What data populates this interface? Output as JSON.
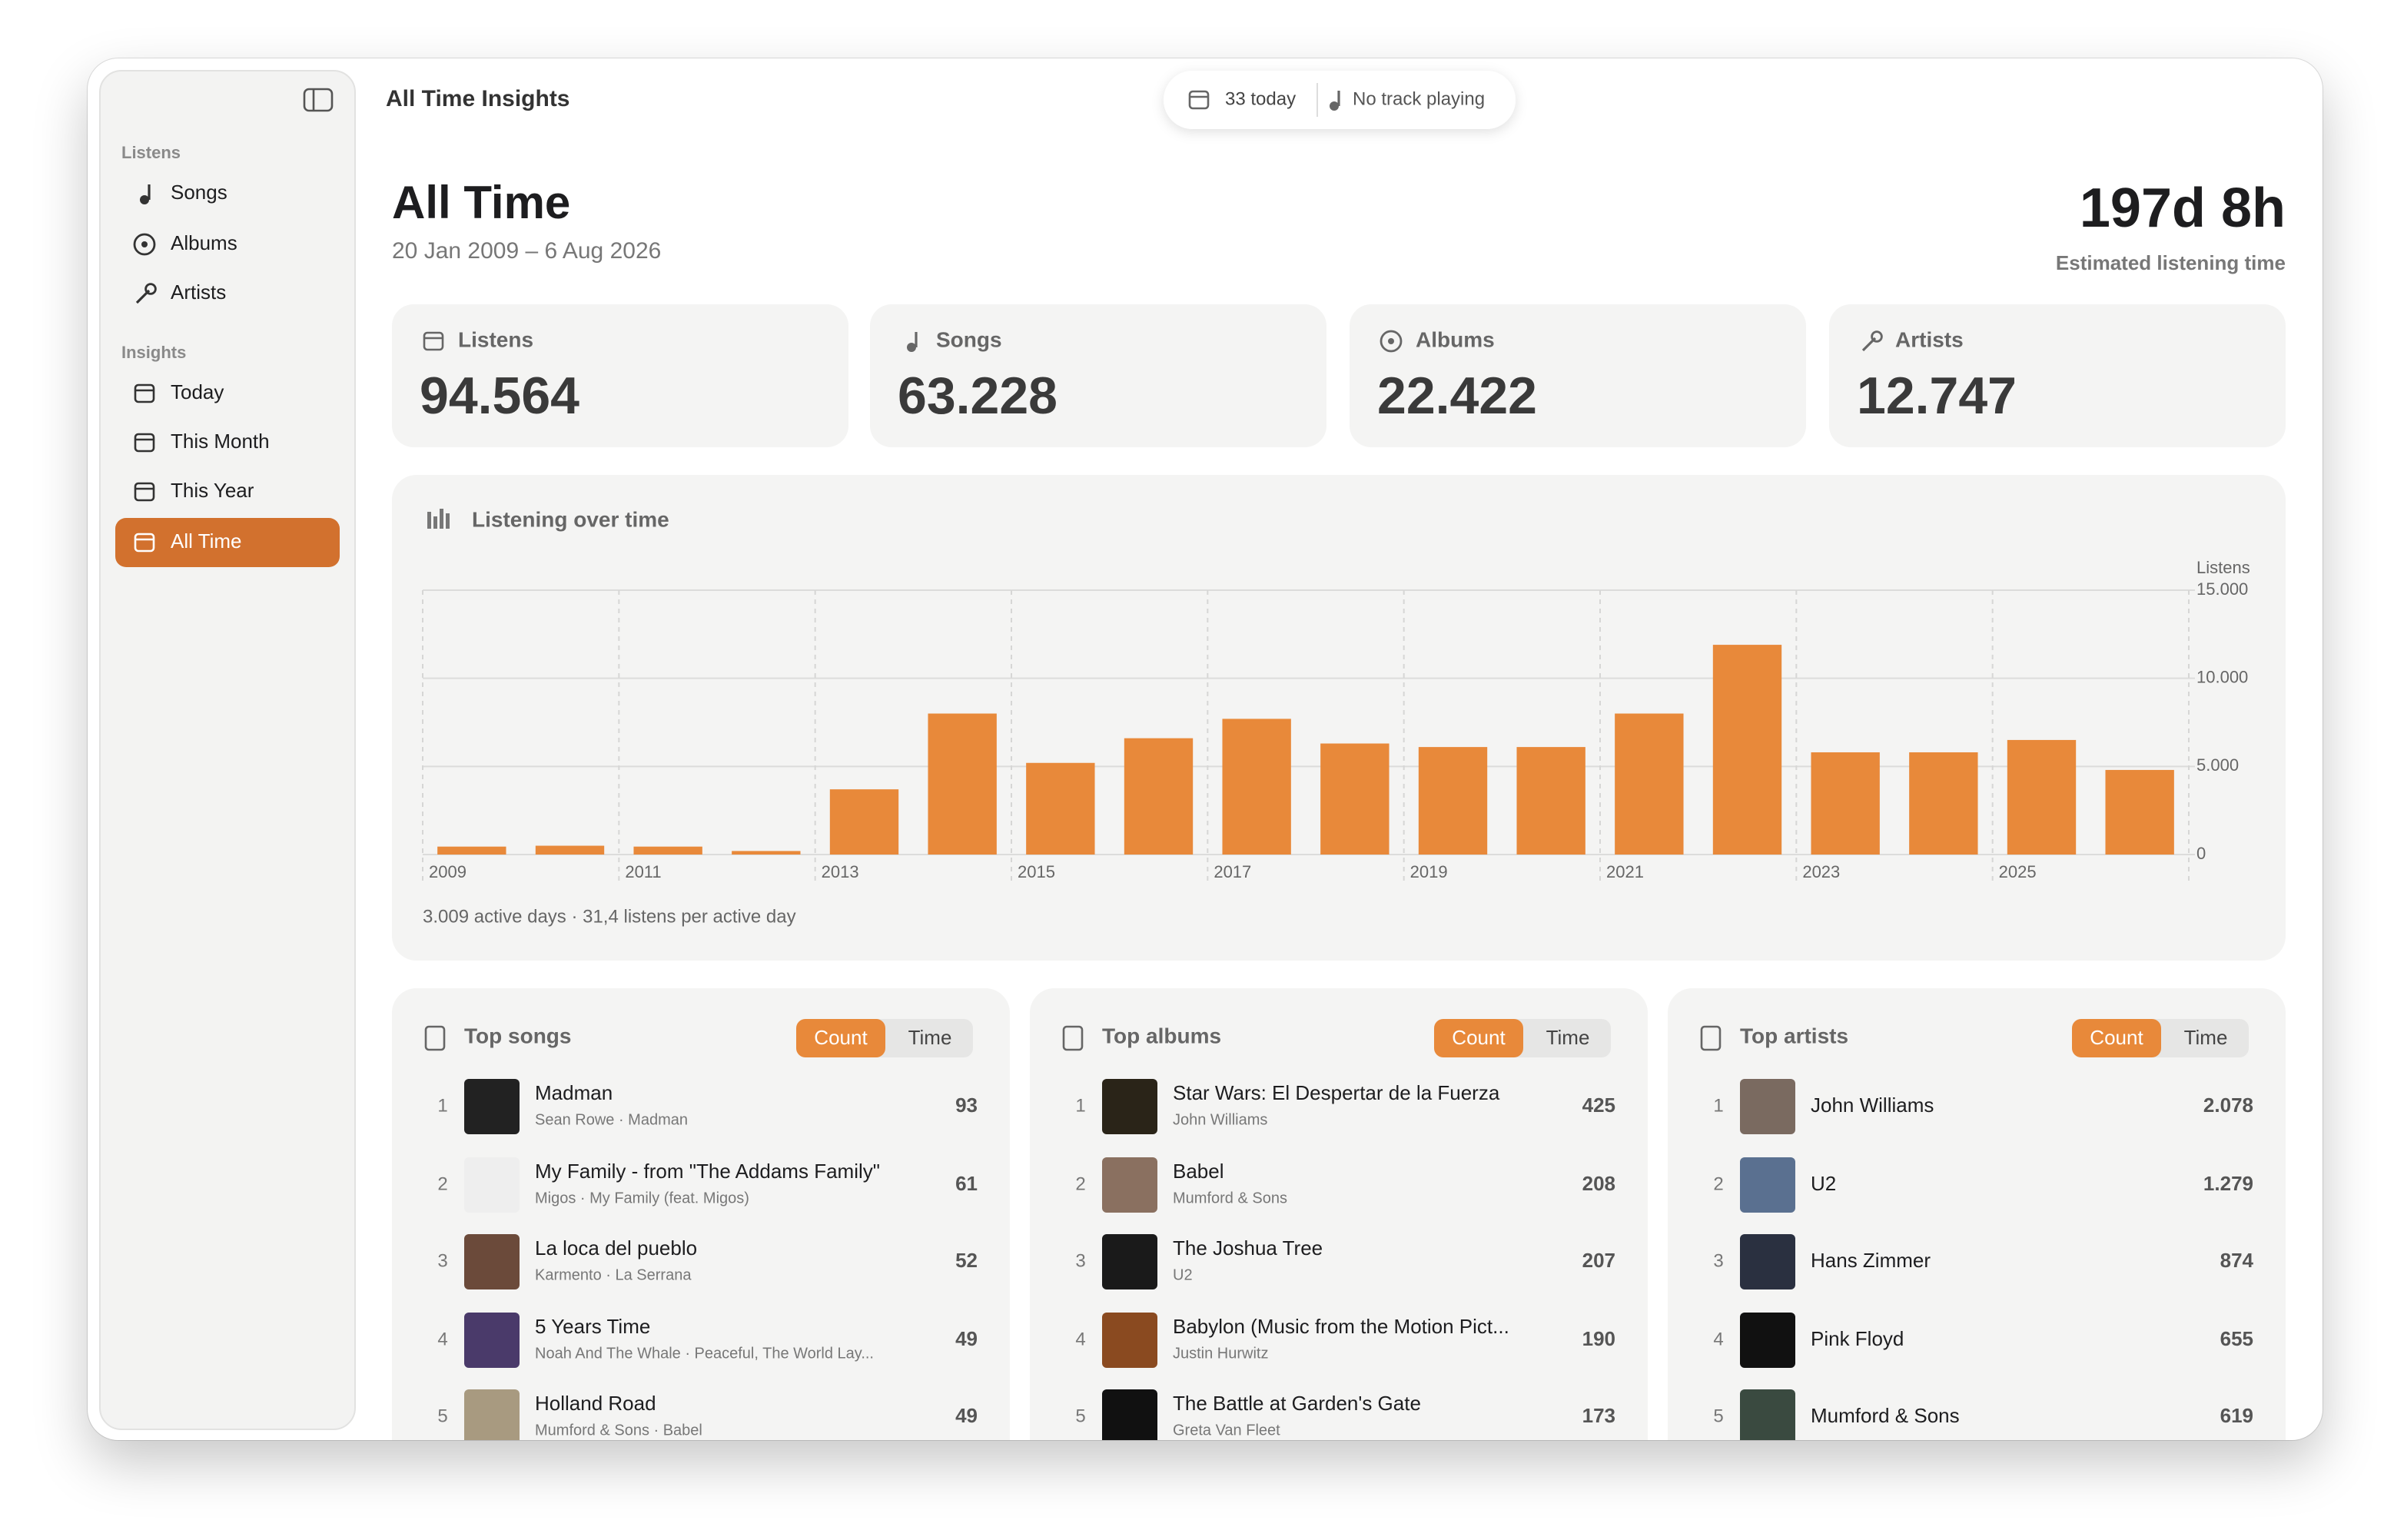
{
  "window": {
    "title": "All Time Insights",
    "toolbar": {
      "today": "33 today",
      "now_playing": "No track playing"
    }
  },
  "sidebar": {
    "sections": [
      {
        "title": "Listens",
        "items": [
          "Songs",
          "Albums",
          "Artists"
        ]
      },
      {
        "title": "Insights",
        "items": [
          "Today",
          "This Month",
          "This Year",
          "All Time"
        ]
      }
    ]
  },
  "header": {
    "title": "All Time",
    "date_range": "20 Jan 2009 – 6 Aug 2026",
    "total": "197d 8h",
    "total_label": "Estimated listening time"
  },
  "stats": [
    {
      "label": "Listens",
      "value": "94.564"
    },
    {
      "label": "Songs",
      "value": "63.228"
    },
    {
      "label": "Albums",
      "value": "22.422"
    },
    {
      "label": "Artists",
      "value": "12.747"
    }
  ],
  "chart_data": {
    "type": "bar",
    "title": "Listening over time",
    "y_label": "Listens",
    "categories": [
      "2009",
      null,
      "2011",
      null,
      "2013",
      null,
      "2015",
      null,
      "2017",
      null,
      "2019",
      null,
      "2021",
      null,
      "2023",
      null,
      "2025",
      null
    ],
    "values": [
      450,
      500,
      450,
      200,
      3700,
      8000,
      5200,
      6600,
      7700,
      6300,
      6100,
      6100,
      8000,
      11900,
      5800,
      5800,
      6500,
      4800
    ],
    "color": "#e8893a",
    "ylim": [
      0,
      15000
    ],
    "yticks": [
      0,
      {
        "value": 5000,
        "label": "5.000"
      },
      {
        "value": 10000,
        "label": "10.000"
      },
      {
        "value": 15000,
        "label": "15.000"
      }
    ],
    "grid": true,
    "footnote": "3.009 active days · 31,4 listens per active day"
  },
  "top_lists": [
    {
      "title": "Top songs",
      "toggle": [
        "Count",
        "Time"
      ],
      "items": [
        {
          "rank": "1",
          "title": "Madman",
          "subtitle": "Sean Rowe · Madman",
          "count": "93"
        },
        {
          "rank": "2",
          "title": "My Family - from \"The Addams Family\"",
          "subtitle": "Migos · My Family (feat. Migos)",
          "count": "61"
        },
        {
          "rank": "3",
          "title": "La loca del pueblo",
          "subtitle": "Karmento · La Serrana",
          "count": "52"
        },
        {
          "rank": "4",
          "title": "5 Years Time",
          "subtitle": "Noah And The Whale · Peaceful, The World Lay...",
          "count": "49"
        },
        {
          "rank": "5",
          "title": "Holland Road",
          "subtitle": "Mumford & Sons · Babel",
          "count": "49"
        }
      ]
    },
    {
      "title": "Top albums",
      "toggle": [
        "Count",
        "Time"
      ],
      "items": [
        {
          "rank": "1",
          "title": "Star Wars: El Despertar de la Fuerza",
          "subtitle": "John Williams",
          "count": "425"
        },
        {
          "rank": "2",
          "title": "Babel",
          "subtitle": "Mumford & Sons",
          "count": "208"
        },
        {
          "rank": "3",
          "title": "The Joshua Tree",
          "subtitle": "U2",
          "count": "207"
        },
        {
          "rank": "4",
          "title": "Babylon (Music from the Motion Pict...",
          "subtitle": "Justin Hurwitz",
          "count": "190"
        },
        {
          "rank": "5",
          "title": "The Battle at Garden's Gate",
          "subtitle": "Greta Van Fleet",
          "count": "173"
        }
      ]
    },
    {
      "title": "Top artists",
      "toggle": [
        "Count",
        "Time"
      ],
      "items": [
        {
          "rank": "1",
          "title": "John Williams",
          "count": "2.078"
        },
        {
          "rank": "2",
          "title": "U2",
          "count": "1.279"
        },
        {
          "rank": "3",
          "title": "Hans Zimmer",
          "count": "874"
        },
        {
          "rank": "4",
          "title": "Pink Floyd",
          "count": "655"
        },
        {
          "rank": "5",
          "title": "Mumford & Sons",
          "count": "619"
        }
      ]
    }
  ]
}
